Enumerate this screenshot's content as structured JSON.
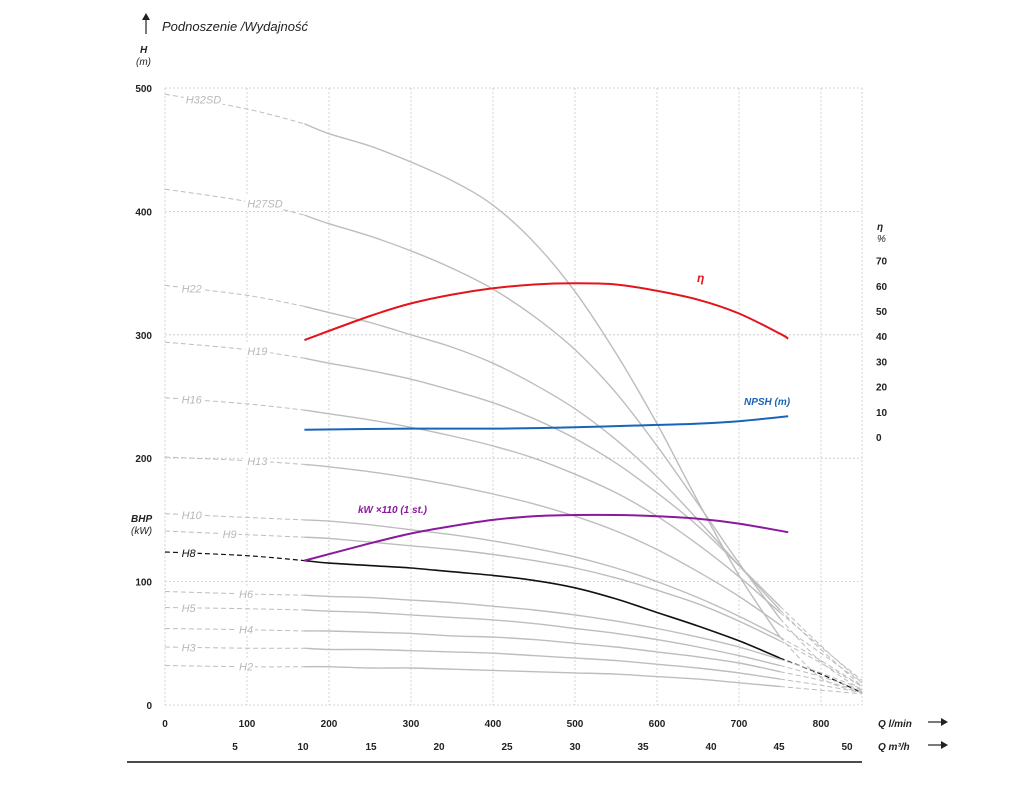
{
  "chart_data": {
    "type": "line",
    "title": "Podnoszenie /Wydajność",
    "colors": {
      "head_curve": "#bdbdbd",
      "head_curve_highlight": "#111111",
      "efficiency": "#e3141b",
      "npsh": "#1a64b8",
      "power": "#8a1a9c",
      "grid": "#c8c8c8"
    },
    "left_axis": {
      "name": "H",
      "unit": "(m)",
      "range": [
        0,
        500
      ],
      "ticks": [
        "0",
        "100",
        "200",
        "300",
        "400",
        "500"
      ],
      "secondary_name": "BHP",
      "secondary_unit": "(kW)"
    },
    "right_axis": {
      "name": "η",
      "unit": "%",
      "ticks": [
        "0",
        "10",
        "20",
        "30",
        "40",
        "50",
        "60",
        "70"
      ]
    },
    "x_axis_lmin": {
      "label": "Q l/min",
      "range": [
        0,
        850
      ],
      "ticks": [
        "0",
        "100",
        "200",
        "300",
        "400",
        "500",
        "600",
        "700",
        "800"
      ]
    },
    "x_axis_m3h": {
      "label": "Q m³/h",
      "ticks": [
        "5",
        "10",
        "15",
        "20",
        "25",
        "30",
        "35",
        "40",
        "45",
        "50"
      ]
    },
    "grid": true,
    "head_curves": [
      {
        "name": "H32SD",
        "q": [
          0,
          100,
          170,
          200,
          250,
          300,
          350,
          400,
          450,
          500,
          550,
          600,
          650,
          700,
          750,
          800,
          850
        ],
        "h": [
          495,
          483,
          471,
          463,
          453,
          440,
          425,
          405,
          375,
          335,
          285,
          228,
          165,
          105,
          55,
          22,
          10
        ]
      },
      {
        "name": "H27SD",
        "q": [
          0,
          100,
          170,
          200,
          250,
          300,
          350,
          400,
          450,
          500,
          550,
          600,
          650,
          700,
          750,
          800,
          850
        ],
        "h": [
          418,
          408,
          397,
          390,
          380,
          368,
          354,
          337,
          315,
          288,
          253,
          210,
          163,
          115,
          70,
          35,
          12
        ]
      },
      {
        "name": "H22",
        "q": [
          0,
          100,
          170,
          200,
          250,
          300,
          350,
          400,
          450,
          500,
          550,
          600,
          650,
          700,
          750,
          800,
          850
        ],
        "h": [
          340,
          332,
          323,
          318,
          310,
          300,
          290,
          277,
          260,
          240,
          215,
          185,
          150,
          113,
          77,
          45,
          15
        ]
      },
      {
        "name": "H19",
        "q": [
          0,
          100,
          170,
          200,
          250,
          300,
          350,
          400,
          450,
          500,
          550,
          600,
          650,
          700,
          750,
          800,
          850
        ],
        "h": [
          294,
          288,
          281,
          277,
          271,
          264,
          255,
          245,
          232,
          216,
          196,
          172,
          145,
          113,
          80,
          48,
          18
        ]
      },
      {
        "name": "H16",
        "q": [
          0,
          100,
          170,
          200,
          250,
          300,
          350,
          400,
          450,
          500,
          550,
          600,
          650,
          700,
          750,
          800,
          850
        ],
        "h": [
          249,
          244,
          239,
          236,
          231,
          225,
          218,
          210,
          200,
          187,
          172,
          153,
          130,
          104,
          75,
          47,
          20
        ]
      },
      {
        "name": "H13",
        "q": [
          0,
          100,
          170,
          200,
          250,
          300,
          350,
          400,
          450,
          500,
          550,
          600,
          650,
          700,
          750,
          800,
          850
        ],
        "h": [
          201,
          198,
          195,
          193,
          189,
          184,
          178,
          171,
          163,
          153,
          141,
          126,
          108,
          88,
          65,
          42,
          18
        ]
      },
      {
        "name": "H10",
        "q": [
          0,
          100,
          170,
          200,
          250,
          300,
          350,
          400,
          450,
          500,
          550,
          600,
          650,
          700,
          750,
          800,
          850
        ],
        "h": [
          155,
          152,
          150,
          149,
          146,
          142,
          138,
          133,
          127,
          120,
          111,
          100,
          87,
          72,
          55,
          36,
          15
        ]
      },
      {
        "name": "H9",
        "q": [
          0,
          100,
          170,
          200,
          250,
          300,
          350,
          400,
          450,
          500,
          550,
          600,
          650,
          700,
          750,
          800,
          850
        ],
        "h": [
          141,
          138,
          136,
          135,
          132,
          129,
          126,
          122,
          117,
          111,
          103,
          93,
          82,
          68,
          52,
          34,
          15
        ]
      },
      {
        "name": "H8",
        "q": [
          0,
          100,
          170,
          200,
          250,
          300,
          350,
          400,
          450,
          500,
          550,
          600,
          650,
          700,
          750,
          800,
          850
        ],
        "h": [
          124,
          121,
          117,
          115,
          113,
          111,
          108,
          105,
          101,
          95,
          86,
          75,
          64,
          52,
          38,
          25,
          10
        ]
      },
      {
        "name": "H6",
        "q": [
          0,
          100,
          170,
          200,
          250,
          300,
          350,
          400,
          450,
          500,
          550,
          600,
          650,
          700,
          750,
          800,
          850
        ],
        "h": [
          92,
          90,
          89,
          88,
          87,
          85,
          83,
          80,
          77,
          73,
          68,
          62,
          55,
          47,
          37,
          26,
          13
        ]
      },
      {
        "name": "H5",
        "q": [
          0,
          100,
          170,
          200,
          250,
          300,
          350,
          400,
          450,
          500,
          550,
          600,
          650,
          700,
          750,
          800,
          850
        ],
        "h": [
          79,
          78,
          77,
          76,
          75,
          73,
          71,
          69,
          66,
          62,
          58,
          53,
          47,
          40,
          32,
          23,
          12
        ]
      },
      {
        "name": "H4",
        "q": [
          0,
          100,
          170,
          200,
          250,
          300,
          350,
          400,
          450,
          500,
          550,
          600,
          650,
          700,
          750,
          800,
          850
        ],
        "h": [
          62,
          61,
          60,
          60,
          59,
          58,
          56,
          55,
          53,
          50,
          47,
          43,
          39,
          34,
          27,
          20,
          11
        ]
      },
      {
        "name": "H3",
        "q": [
          0,
          100,
          170,
          200,
          250,
          300,
          350,
          400,
          450,
          500,
          550,
          600,
          650,
          700,
          750,
          800,
          850
        ],
        "h": [
          47,
          46,
          46,
          45,
          45,
          44,
          43,
          42,
          40,
          38,
          36,
          33,
          30,
          26,
          21,
          16,
          10
        ]
      },
      {
        "name": "H2",
        "q": [
          0,
          100,
          170,
          200,
          250,
          300,
          350,
          400,
          450,
          500,
          550,
          600,
          650,
          700,
          750,
          800,
          850
        ],
        "h": [
          32,
          31,
          31,
          31,
          30,
          30,
          29,
          28,
          27,
          26,
          25,
          23,
          21,
          18,
          15,
          12,
          9
        ]
      }
    ],
    "highlight_curve": "H8",
    "efficiency": {
      "name": "η",
      "q": [
        170,
        250,
        300,
        350,
        400,
        450,
        500,
        550,
        600,
        650,
        700,
        750,
        760
      ],
      "eta": [
        38.5,
        48,
        53,
        56.5,
        59,
        60.5,
        61,
        60.5,
        58,
        54.5,
        49,
        41,
        39
      ]
    },
    "npsh": {
      "name": "NPSH (m)",
      "q": [
        170,
        300,
        400,
        500,
        600,
        650,
        700,
        760
      ],
      "h": [
        223,
        224,
        224,
        225,
        227,
        228,
        230,
        234
      ]
    },
    "power": {
      "name": "kW ×110 (1 st.)",
      "q": [
        170,
        250,
        300,
        350,
        400,
        450,
        500,
        550,
        600,
        650,
        700,
        760
      ],
      "h": [
        117,
        131,
        139,
        145,
        150,
        153,
        154,
        154,
        153,
        151,
        147,
        140
      ]
    }
  }
}
